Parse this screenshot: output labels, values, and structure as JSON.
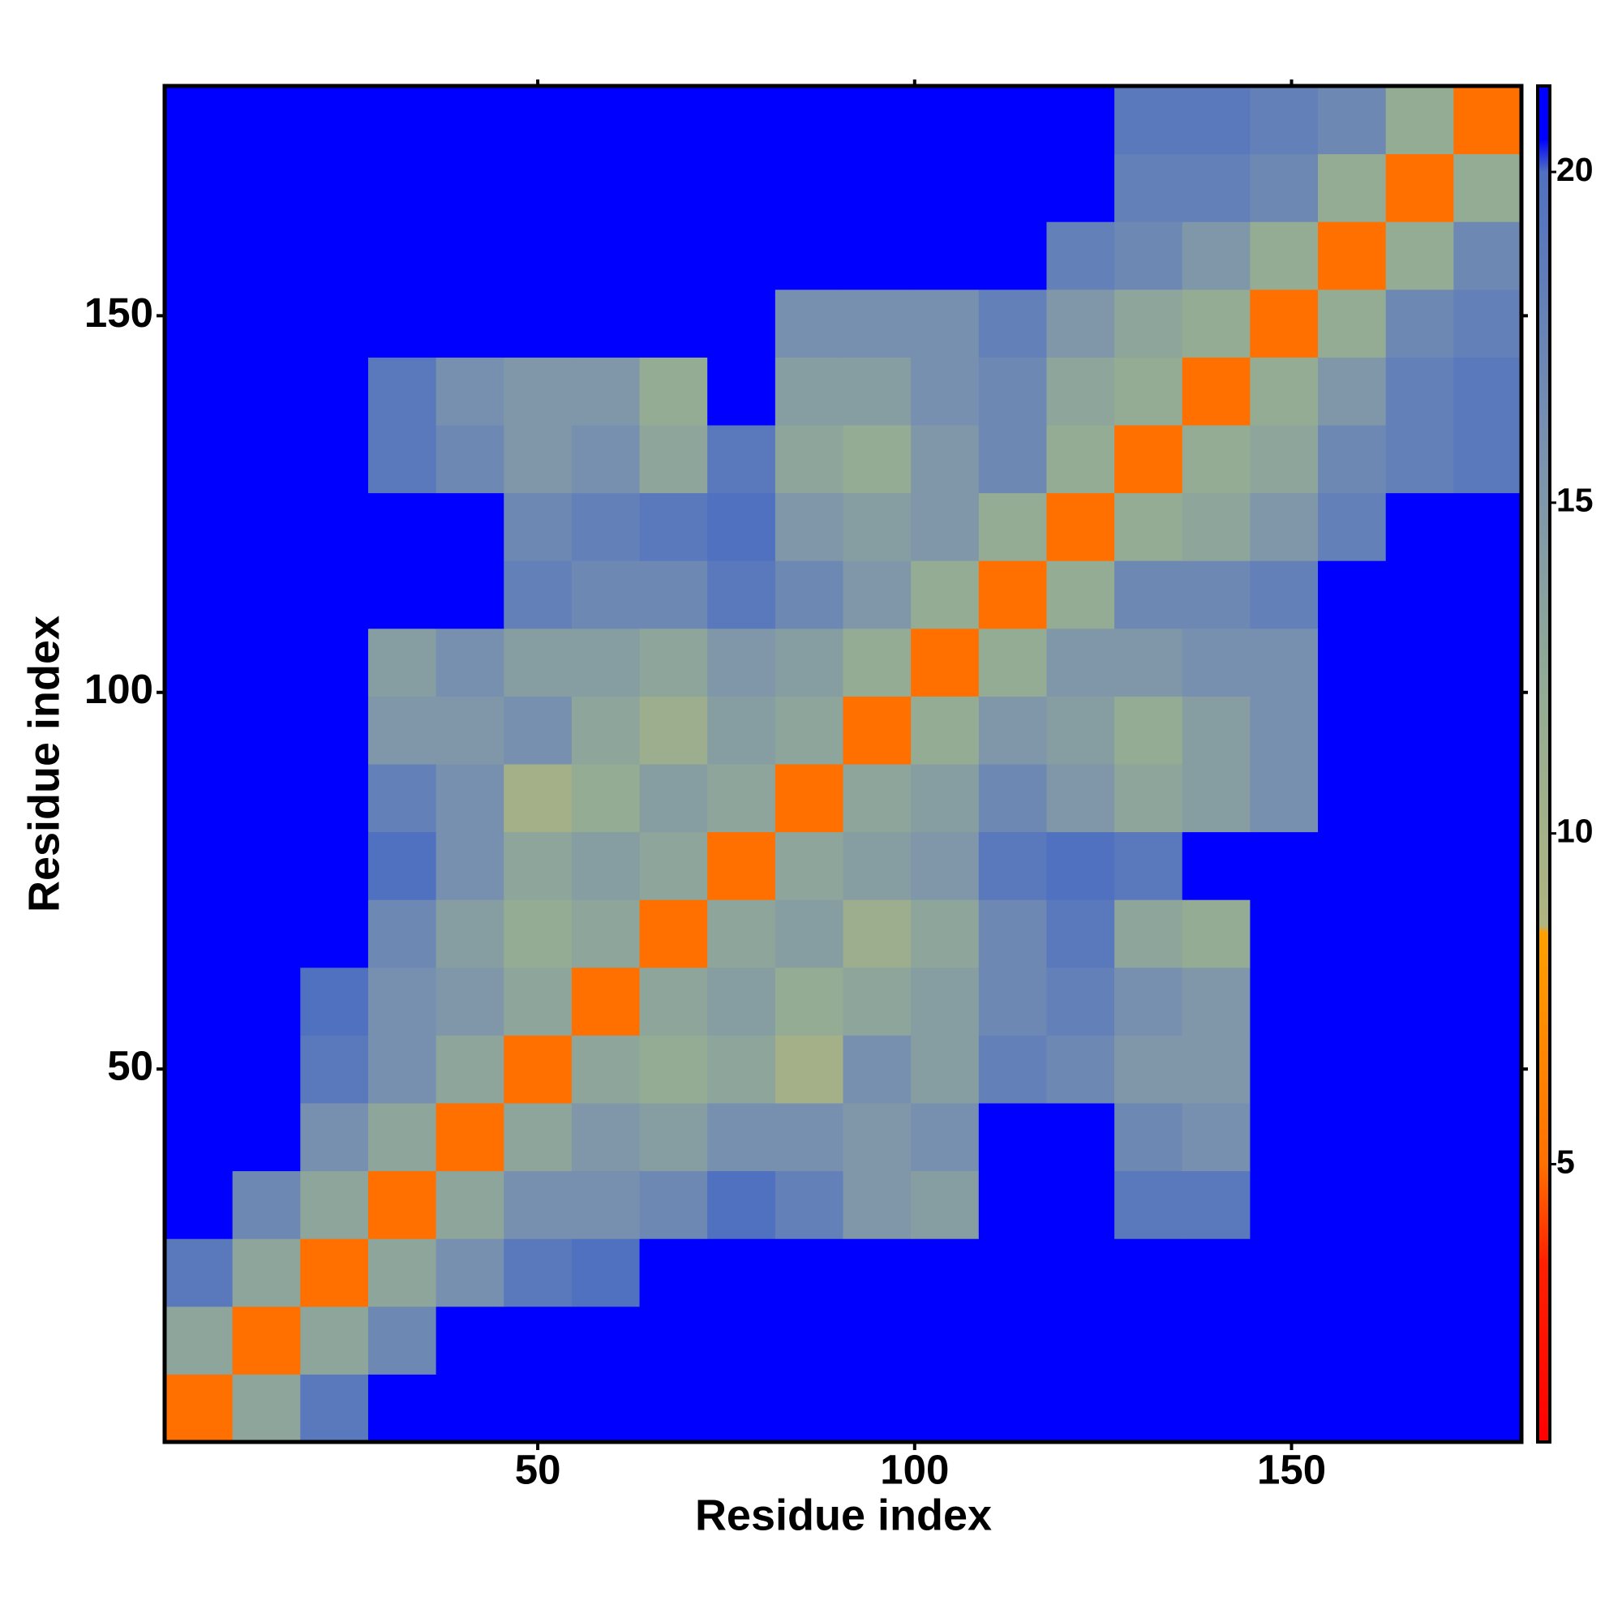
{
  "chart_data": {
    "type": "heatmap",
    "x_label": "Residue index",
    "y_label": "Residue index",
    "xbins": [
      0.5,
      9.5,
      18.5,
      27.5,
      36.5,
      45.5,
      54.5,
      63.5,
      72.5,
      81.5,
      90.5,
      99.5,
      108.5,
      117.5,
      126.5,
      135.5,
      144.5,
      153.5,
      162.5,
      171.5,
      180.5
    ],
    "ybins": [
      0.5,
      9.5,
      18.5,
      27.5,
      36.5,
      45.5,
      54.5,
      63.5,
      72.5,
      81.5,
      90.5,
      99.5,
      108.5,
      117.5,
      126.5,
      135.5,
      144.5,
      153.5,
      162.5,
      171.5,
      180.5
    ],
    "xlim": [
      0.5,
      180.5
    ],
    "ylim": [
      0.5,
      180.5
    ],
    "xticks": [
      50,
      100,
      150
    ],
    "yticks": [
      50,
      100,
      150
    ],
    "zlim": [
      0.8,
      21.3
    ],
    "zticks": [
      5,
      10,
      15,
      20
    ],
    "colorscale": [
      {
        "value": 0.8,
        "color": "#ff0000"
      },
      {
        "value": 3.5,
        "color": "#ff2000"
      },
      {
        "value": 5,
        "color": "#ff7000"
      },
      {
        "value": 8.5,
        "color": "#ffa000"
      },
      {
        "value": 8.6,
        "color": "#b0b480"
      },
      {
        "value": 12,
        "color": "#94ac94"
      },
      {
        "value": 16,
        "color": "#7890b0"
      },
      {
        "value": 20,
        "color": "#5070c0"
      },
      {
        "value": 20.5,
        "color": "#0000ff"
      },
      {
        "value": 21.3,
        "color": "#0000ff"
      }
    ],
    "z": [
      [
        5,
        13,
        19,
        21,
        21,
        21,
        21,
        21,
        21,
        21,
        21,
        21,
        21,
        21,
        21,
        21,
        21,
        21,
        21,
        21
      ],
      [
        13,
        5,
        13,
        17,
        21,
        21,
        21,
        21,
        21,
        21,
        21,
        21,
        21,
        21,
        21,
        21,
        21,
        21,
        21,
        21
      ],
      [
        19,
        13,
        5,
        13,
        16,
        19,
        20,
        21,
        21,
        21,
        21,
        21,
        21,
        21,
        21,
        21,
        21,
        21,
        21,
        21
      ],
      [
        21,
        17,
        13,
        5,
        13,
        16,
        16,
        17,
        20,
        18,
        15,
        14,
        21,
        21,
        19,
        19,
        21,
        21,
        21,
        21
      ],
      [
        21,
        21,
        16,
        13,
        5,
        13,
        15,
        14,
        16,
        16,
        15,
        16,
        21,
        21,
        17,
        16,
        21,
        21,
        21,
        21
      ],
      [
        21,
        21,
        19,
        16,
        13,
        5,
        13,
        12,
        13,
        10,
        16,
        14,
        18,
        17,
        15,
        15,
        21,
        21,
        21,
        21
      ],
      [
        21,
        21,
        20,
        16,
        15,
        13,
        5,
        13,
        14,
        12,
        13,
        14,
        17,
        18,
        16,
        15,
        21,
        21,
        21,
        21
      ],
      [
        21,
        21,
        21,
        17,
        14,
        12,
        13,
        5,
        13,
        14,
        11,
        13,
        17,
        19,
        13,
        12,
        21,
        21,
        21,
        21
      ],
      [
        21,
        21,
        21,
        20,
        16,
        13,
        14,
        13,
        5,
        13,
        14,
        15,
        19,
        20,
        19,
        21,
        21,
        21,
        21,
        21
      ],
      [
        21,
        21,
        21,
        18,
        16,
        10,
        12,
        14,
        13,
        5,
        13,
        14,
        17,
        15,
        13,
        14,
        16,
        21,
        21,
        21
      ],
      [
        21,
        21,
        21,
        15,
        15,
        16,
        13,
        11,
        14,
        13,
        5,
        12,
        15,
        14,
        12,
        14,
        16,
        21,
        21,
        21
      ],
      [
        21,
        21,
        21,
        14,
        16,
        14,
        14,
        13,
        15,
        14,
        12,
        5,
        12,
        15,
        15,
        16,
        16,
        21,
        21,
        21
      ],
      [
        21,
        21,
        21,
        21,
        21,
        18,
        17,
        17,
        19,
        17,
        15,
        12,
        5,
        12,
        17,
        17,
        18,
        21,
        21,
        21
      ],
      [
        21,
        21,
        21,
        21,
        21,
        17,
        18,
        19,
        20,
        15,
        14,
        15,
        12,
        5,
        12,
        13,
        15,
        18,
        21,
        21
      ],
      [
        21,
        21,
        21,
        19,
        17,
        15,
        16,
        13,
        19,
        13,
        12,
        15,
        17,
        12,
        5,
        12,
        13,
        17,
        18,
        19
      ],
      [
        21,
        21,
        21,
        19,
        16,
        15,
        15,
        12,
        21,
        14,
        14,
        16,
        17,
        13,
        12,
        5,
        12,
        15,
        18,
        19
      ],
      [
        21,
        21,
        21,
        21,
        21,
        21,
        21,
        21,
        21,
        16,
        16,
        16,
        18,
        15,
        13,
        12,
        5,
        12,
        17,
        18
      ],
      [
        21,
        21,
        21,
        21,
        21,
        21,
        21,
        21,
        21,
        21,
        21,
        21,
        21,
        18,
        17,
        15,
        12,
        5,
        12,
        17
      ],
      [
        21,
        21,
        21,
        21,
        21,
        21,
        21,
        21,
        21,
        21,
        21,
        21,
        21,
        21,
        18,
        18,
        17,
        12,
        5,
        12
      ],
      [
        21,
        21,
        21,
        21,
        21,
        21,
        21,
        21,
        21,
        21,
        21,
        21,
        21,
        21,
        19,
        19,
        18,
        17,
        12,
        5
      ]
    ]
  }
}
